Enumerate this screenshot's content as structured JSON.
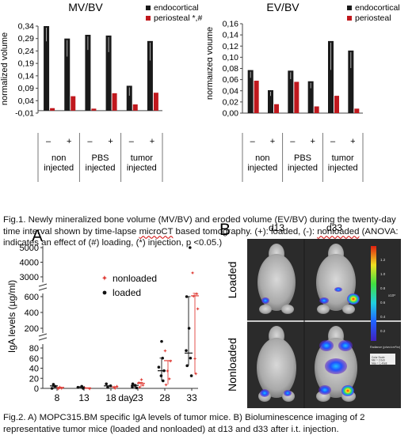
{
  "figure1": {
    "caption_parts": [
      {
        "text": "Fig.1. Newly mineralized bone volume (MV/BV) and eroded volume (EV/BV) during the twenty-day time interval shown by time-lapse ",
        "mark": false
      },
      {
        "text": "microCT",
        "mark": true
      },
      {
        "text": " based tomography. (+): loaded, (-): ",
        "mark": false
      },
      {
        "text": "nonloaded",
        "mark": true
      },
      {
        "text": " (ANOVA: indicates an effect of (#) loading, (*) injection, p <0.05.)",
        "mark": false
      }
    ]
  },
  "figure2": {
    "caption": "Fig.2. A) MOPC315.BM specific IgA levels of tumor mice. B) Bioluminescence imaging of 2 representative tumor mice (loaded and nonloaded) at d13 and d33 after i.t. injection.",
    "panel_a_label": "A",
    "panel_b_label": "B",
    "imaging": {
      "timepoints": [
        "d13",
        "d33"
      ],
      "rows": [
        "Loaded",
        "Nonloaded"
      ],
      "scale_tick_labels": [
        "1.2",
        "1.0",
        "0.8",
        "0.6",
        "0.4",
        "0.2"
      ],
      "scale_unit": "x10⁸",
      "scale_caption": "Radiance (p/sec/cm²/sr)",
      "scale_minmax": "Color Scale\nMin = 2.0e6\nMax = 1.40e8"
    }
  },
  "colors": {
    "endocortical": "#1a1a1a",
    "periosteal": "#c0181d",
    "nonloaded": "#e0403a",
    "loaded": "#111111"
  },
  "chart_data": [
    {
      "type": "bar",
      "title": "MV/BV",
      "ylabel": "normalized  volume",
      "ylim": [
        -0.01,
        0.34
      ],
      "yticks": [
        0.34,
        0.29,
        0.24,
        0.19,
        0.14,
        0.09,
        0.04,
        -0.01
      ],
      "ytick_labels": [
        "0,34",
        "0,29",
        "0,24",
        "0,19",
        "0,14",
        "0,09",
        "0,04",
        "-0,01"
      ],
      "categories": [
        "–",
        "+",
        "–",
        "+",
        "–",
        "+"
      ],
      "groups": [
        "non\ninjected",
        "PBS\ninjected",
        "tumor\ninjected"
      ],
      "legend_position": "top-right",
      "series": [
        {
          "name": "endocortical",
          "values": [
            0.34,
            0.29,
            0.305,
            0.302,
            0.1,
            0.28
          ]
        },
        {
          "name": "periosteal *,#",
          "values": [
            0.01,
            0.058,
            0.008,
            0.07,
            0.025,
            0.072
          ]
        }
      ]
    },
    {
      "type": "bar",
      "title": "EV/BV",
      "ylabel": "normalized volume",
      "ylim": [
        0,
        0.16
      ],
      "yticks": [
        0.16,
        0.14,
        0.12,
        0.1,
        0.08,
        0.06,
        0.04,
        0.02,
        0
      ],
      "ytick_labels": [
        "0,16",
        "0,14",
        "0,12",
        "0,10",
        "0,08",
        "0,06",
        "0,04",
        "0,02",
        "0,00"
      ],
      "categories": [
        "–",
        "+",
        "–",
        "+",
        "–",
        "+"
      ],
      "groups": [
        "non\ninjected",
        "PBS\ninjected",
        "tumor\ninjected"
      ],
      "legend_position": "top-right",
      "series": [
        {
          "name": "endocortical",
          "values": [
            0.077,
            0.041,
            0.076,
            0.057,
            0.129,
            0.112
          ]
        },
        {
          "name": "periosteal",
          "values": [
            0.058,
            0.016,
            0.056,
            0.012,
            0.031,
            0.008
          ]
        }
      ]
    },
    {
      "type": "scatter",
      "ylabel": "IgA  levels (µg/ml)",
      "xlabel": "day",
      "x_categories": [
        "8",
        "13",
        "18",
        "23",
        "28",
        "33"
      ],
      "axis_break": true,
      "yticks": [
        0,
        20,
        40,
        60,
        80,
        200,
        400,
        600,
        3000,
        4000,
        5000
      ],
      "legend_position": "top-right",
      "series": [
        {
          "name": "nonloaded",
          "points": [
            [
              8,
              0
            ],
            [
              8,
              1
            ],
            [
              8,
              3
            ],
            [
              13,
              0
            ],
            [
              13,
              2
            ],
            [
              18,
              1
            ],
            [
              18,
              3
            ],
            [
              18,
              5
            ],
            [
              23,
              3
            ],
            [
              23,
              7
            ],
            [
              23,
              12
            ],
            [
              23,
              18
            ],
            [
              28,
              8
            ],
            [
              28,
              20
            ],
            [
              28,
              35
            ],
            [
              28,
              55
            ],
            [
              28,
              75
            ],
            [
              33,
              30
            ],
            [
              33,
              60
            ],
            [
              33,
              450
            ],
            [
              33,
              700
            ],
            [
              33,
              1000
            ],
            [
              33,
              3300
            ]
          ],
          "mean": [
            2,
            1,
            3,
            10,
            55,
            700
          ]
        },
        {
          "name": "loaded",
          "points": [
            [
              8,
              0
            ],
            [
              8,
              4
            ],
            [
              8,
              8
            ],
            [
              13,
              0
            ],
            [
              13,
              2
            ],
            [
              13,
              4
            ],
            [
              18,
              2
            ],
            [
              18,
              5
            ],
            [
              18,
              9
            ],
            [
              23,
              1
            ],
            [
              23,
              3
            ],
            [
              23,
              6
            ],
            [
              23,
              9
            ],
            [
              28,
              15
            ],
            [
              28,
              25
            ],
            [
              28,
              35
            ],
            [
              28,
              42
            ],
            [
              28,
              60
            ],
            [
              28,
              120
            ],
            [
              33,
              25
            ],
            [
              33,
              45
            ],
            [
              33,
              60
            ],
            [
              33,
              75
            ],
            [
              33,
              200
            ],
            [
              33,
              600
            ],
            [
              33,
              5000
            ]
          ],
          "mean": [
            5,
            3,
            5,
            6,
            35,
            70
          ]
        }
      ]
    }
  ]
}
